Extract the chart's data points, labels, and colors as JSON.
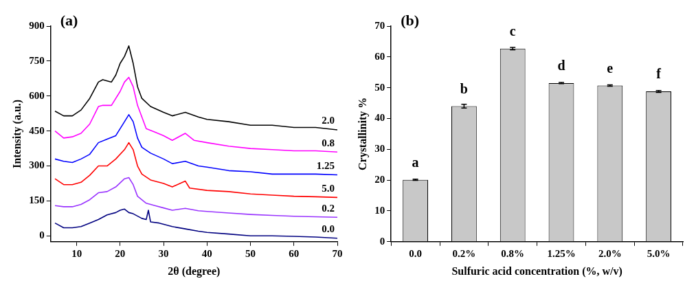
{
  "chart_data": [
    {
      "type": "line",
      "title": "(a)",
      "xlabel": "2θ (degree)",
      "ylabel": "Intensity (a.u.)",
      "xlim": [
        4,
        70
      ],
      "xticks": [
        10,
        20,
        30,
        40,
        50,
        60,
        70
      ],
      "ylim": [
        -25,
        900
      ],
      "yticks": [
        0,
        150,
        300,
        450,
        600,
        750,
        900
      ],
      "grid": false,
      "legend": false,
      "marker": "none",
      "series": [
        {
          "name": "2.0",
          "color": "#000000",
          "x": [
            5,
            7,
            9,
            11,
            13,
            15,
            16,
            18,
            19,
            20,
            21,
            22,
            23,
            24,
            25,
            27,
            30,
            32,
            35,
            38,
            40,
            45,
            50,
            55,
            60,
            65,
            70
          ],
          "values": [
            535,
            515,
            515,
            540,
            590,
            660,
            670,
            660,
            690,
            740,
            770,
            815,
            740,
            640,
            590,
            555,
            530,
            515,
            530,
            510,
            500,
            490,
            475,
            475,
            465,
            465,
            455
          ]
        },
        {
          "name": "0.8",
          "color": "#ff00ff",
          "x": [
            5,
            7,
            9,
            11,
            13,
            15,
            16,
            18,
            20,
            21,
            22,
            23,
            24,
            26,
            28,
            30,
            32,
            35,
            37,
            40,
            45,
            50,
            55,
            60,
            65,
            70
          ],
          "values": [
            450,
            420,
            425,
            440,
            480,
            555,
            560,
            560,
            620,
            660,
            680,
            640,
            560,
            460,
            445,
            430,
            410,
            440,
            410,
            400,
            385,
            375,
            370,
            365,
            365,
            360
          ]
        },
        {
          "name": "1.25",
          "color": "#0000ff",
          "x": [
            5,
            7,
            9,
            11,
            13,
            15,
            17,
            19,
            21,
            22,
            23,
            24,
            25,
            27,
            30,
            32,
            35,
            38,
            40,
            45,
            50,
            55,
            60,
            65,
            70
          ],
          "values": [
            330,
            320,
            315,
            330,
            350,
            400,
            415,
            430,
            490,
            520,
            490,
            420,
            380,
            355,
            330,
            310,
            320,
            300,
            295,
            280,
            275,
            265,
            265,
            265,
            262
          ]
        },
        {
          "name": "5.0",
          "color": "#ff0000",
          "x": [
            5,
            7,
            9,
            11,
            13,
            15,
            17,
            19,
            21,
            22,
            23,
            24,
            25,
            27,
            30,
            32,
            35,
            36,
            40,
            45,
            50,
            55,
            60,
            65,
            70
          ],
          "values": [
            245,
            220,
            220,
            230,
            260,
            300,
            300,
            330,
            370,
            400,
            370,
            300,
            265,
            240,
            225,
            210,
            235,
            205,
            195,
            190,
            180,
            175,
            170,
            168,
            165
          ]
        },
        {
          "name": "0.2",
          "color": "#9933ff",
          "x": [
            5,
            7,
            9,
            11,
            13,
            15,
            17,
            19,
            21,
            22,
            23,
            24,
            26,
            28,
            30,
            32,
            35,
            38,
            40,
            45,
            50,
            55,
            60,
            65,
            70
          ],
          "values": [
            130,
            125,
            125,
            135,
            155,
            185,
            190,
            210,
            245,
            250,
            220,
            170,
            140,
            130,
            120,
            110,
            118,
            108,
            105,
            98,
            92,
            88,
            84,
            82,
            80
          ]
        },
        {
          "name": "0.0",
          "color": "#000080",
          "x": [
            5,
            7,
            9,
            11,
            13,
            15,
            17,
            19,
            20,
            21,
            22,
            23,
            25,
            26,
            26.5,
            27,
            29,
            32,
            35,
            38,
            40,
            45,
            50,
            55,
            60,
            65,
            70
          ],
          "values": [
            55,
            35,
            35,
            40,
            55,
            70,
            90,
            100,
            110,
            115,
            100,
            95,
            75,
            70,
            110,
            60,
            55,
            40,
            30,
            20,
            15,
            8,
            0,
            0,
            -2,
            -5,
            -10
          ]
        }
      ]
    },
    {
      "type": "bar",
      "title": "(b)",
      "xlabel": "Sulfuric acid concentration (%, w/v)",
      "ylabel": "Crystallinity %",
      "categories": [
        "0.0",
        "0.2%",
        "0.8%",
        "1.25%",
        "2.0%",
        "5.0%"
      ],
      "values": [
        20.1,
        44,
        62.7,
        51.5,
        50.7,
        48.8
      ],
      "errors": [
        0.2,
        0.6,
        0.4,
        0.2,
        0.2,
        0.3
      ],
      "color": "#c8c8c8",
      "ylim": [
        0,
        70
      ],
      "yticks": [
        0,
        10,
        20,
        30,
        40,
        50,
        60,
        70
      ],
      "grid": false,
      "legend": false,
      "annotations": [
        "a",
        "b",
        "c",
        "d",
        "e",
        "f"
      ]
    }
  ]
}
